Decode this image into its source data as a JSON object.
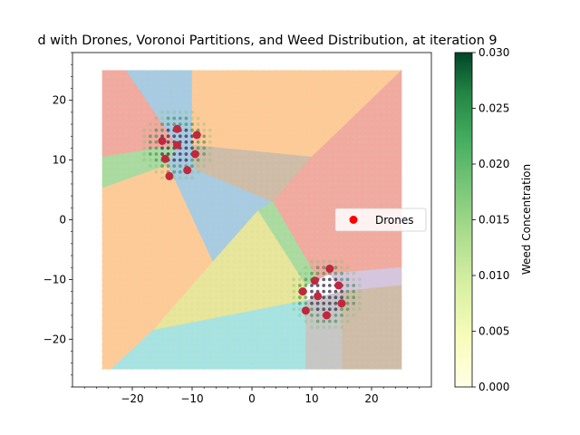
{
  "chart_data": {
    "type": "scatter",
    "title": "d with Drones, Voronoi Partitions, and Weed Distribution, at iteration 9",
    "xlabel": "",
    "ylabel": "",
    "xlim": [
      -30,
      30
    ],
    "ylim": [
      -28,
      28
    ],
    "x_ticks": [
      -20,
      -10,
      0,
      10,
      20
    ],
    "y_ticks": [
      -20,
      -10,
      0,
      10,
      20
    ],
    "field": [
      -25,
      25,
      -25,
      25
    ],
    "legend": {
      "placement": "right",
      "entries": [
        {
          "label": "Drones",
          "color": "#ff0000"
        }
      ]
    },
    "colorbar": {
      "label": "Weed Concentration",
      "range": [
        0,
        0.03
      ],
      "ticks": [
        "0.000",
        "0.005",
        "0.010",
        "0.015",
        "0.020",
        "0.025",
        "0.030"
      ]
    },
    "regions": [
      {
        "color": "#f1a9a0",
        "polygon": [
          [
            -25,
            25
          ],
          [
            -21,
            25
          ],
          [
            -12.5,
            12.5
          ],
          [
            -25,
            10.5
          ]
        ]
      },
      {
        "color": "#a6cbe3",
        "polygon": [
          [
            -21,
            25
          ],
          [
            -10,
            25
          ],
          [
            -10,
            12.5
          ],
          [
            -12.5,
            12.5
          ]
        ]
      },
      {
        "color": "#fecb98",
        "polygon": [
          [
            -10,
            25
          ],
          [
            25,
            25
          ],
          [
            10,
            10.5
          ],
          [
            -10,
            12.5
          ]
        ]
      },
      {
        "color": "#a9dba0",
        "polygon": [
          [
            -25,
            10.5
          ],
          [
            -12.5,
            12.5
          ],
          [
            -14,
            9.2
          ],
          [
            -25,
            5.3
          ]
        ]
      },
      {
        "color": "#fecb98",
        "polygon": [
          [
            -25,
            5.3
          ],
          [
            -14,
            9.2
          ],
          [
            -6.5,
            -7
          ],
          [
            -18.5,
            -25
          ],
          [
            -25,
            -25
          ]
        ]
      },
      {
        "color": "#a6cbe3",
        "polygon": [
          [
            -14,
            9.2
          ],
          [
            -12.5,
            12.5
          ],
          [
            -10,
            12.5
          ],
          [
            -9.5,
            8.5
          ],
          [
            3.5,
            3
          ],
          [
            -6.5,
            -7
          ]
        ]
      },
      {
        "color": "#cebca8",
        "polygon": [
          [
            -10,
            12.5
          ],
          [
            10,
            10.5
          ],
          [
            3.5,
            3
          ],
          [
            -9.5,
            8.5
          ]
        ]
      },
      {
        "color": "#f1a9a0",
        "polygon": [
          [
            3.5,
            3
          ],
          [
            10,
            10.5
          ],
          [
            25,
            25
          ],
          [
            25,
            -8
          ],
          [
            13,
            -9
          ],
          [
            11,
            -10
          ]
        ]
      },
      {
        "color": "#a9dba0",
        "polygon": [
          [
            3.5,
            3
          ],
          [
            11,
            -10
          ],
          [
            9,
            -11
          ],
          [
            1,
            1.5
          ]
        ]
      },
      {
        "color": "#e7e69a",
        "polygon": [
          [
            -6.5,
            -7
          ],
          [
            1,
            1.5
          ],
          [
            9,
            -11
          ],
          [
            9,
            -13.5
          ],
          [
            -16.5,
            -18.5
          ]
        ]
      },
      {
        "color": "#a6e3e3",
        "polygon": [
          [
            -16.5,
            -18.5
          ],
          [
            9,
            -13.5
          ],
          [
            9,
            -25
          ],
          [
            -23.5,
            -25
          ]
        ]
      },
      {
        "color": "#d5c5e0",
        "polygon": [
          [
            13,
            -9
          ],
          [
            25,
            -8
          ],
          [
            25,
            -11
          ],
          [
            15,
            -12
          ]
        ]
      },
      {
        "color": "#cebca8",
        "polygon": [
          [
            15,
            -12
          ],
          [
            25,
            -11
          ],
          [
            25,
            -25
          ],
          [
            15,
            -25
          ]
        ]
      },
      {
        "color": "#c6c6c6",
        "polygon": [
          [
            9,
            -13.5
          ],
          [
            15,
            -12
          ],
          [
            15,
            -25
          ],
          [
            9,
            -25
          ]
        ]
      }
    ],
    "weed_clusters": [
      {
        "cx": -12.5,
        "cy": 12.5,
        "sigma": 2.5
      },
      {
        "cx": 12.5,
        "cy": -12.5,
        "sigma": 2.5
      }
    ],
    "drones": {
      "label": "Drones",
      "points": [
        [
          -15,
          13.2
        ],
        [
          -12.5,
          15.2
        ],
        [
          -12.5,
          12.5
        ],
        [
          -9.2,
          14.2
        ],
        [
          -9.5,
          11
        ],
        [
          -14.5,
          10.2
        ],
        [
          -10.8,
          8.3
        ],
        [
          -13.8,
          7.3
        ],
        [
          10.5,
          -10.2
        ],
        [
          13,
          -8.2
        ],
        [
          14.5,
          -11
        ],
        [
          11,
          -12.8
        ],
        [
          15,
          -14
        ],
        [
          8.5,
          -12
        ],
        [
          12.5,
          -16
        ],
        [
          9,
          -15.2
        ]
      ]
    }
  }
}
